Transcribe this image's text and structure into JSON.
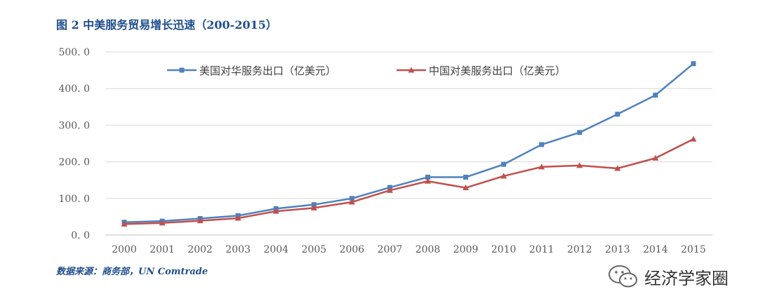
{
  "page": {
    "title": "图 2  中美服务贸易增长迅速（200-2015）",
    "source": "数据来源：商务部，UN Comtrade",
    "watermark": "经济学家圈"
  },
  "chart_data": {
    "type": "line",
    "categories": [
      "2000",
      "2001",
      "2002",
      "2003",
      "2004",
      "2005",
      "2006",
      "2007",
      "2008",
      "2009",
      "2010",
      "2011",
      "2012",
      "2013",
      "2014",
      "2015"
    ],
    "ylim": [
      0,
      500
    ],
    "yticks": [
      0,
      100,
      200,
      300,
      400,
      500
    ],
    "ytick_labels": [
      "0. 0",
      "100. 0",
      "200. 0",
      "300. 0",
      "400. 0",
      "500. 0"
    ],
    "grid": true,
    "legend_position": "top",
    "series": [
      {
        "name": "美国对华服务出口（亿美元）",
        "color": "#4f81bd",
        "marker": "square",
        "values": [
          35,
          38,
          45,
          53,
          72,
          83,
          100,
          130,
          158,
          158,
          193,
          247,
          280,
          330,
          382,
          468
        ]
      },
      {
        "name": "中国对美服务出口（亿美元）",
        "color": "#c0504d",
        "marker": "triangle",
        "values": [
          30,
          33,
          39,
          46,
          65,
          74,
          90,
          122,
          147,
          129,
          161,
          186,
          190,
          182,
          210,
          262
        ]
      }
    ]
  }
}
